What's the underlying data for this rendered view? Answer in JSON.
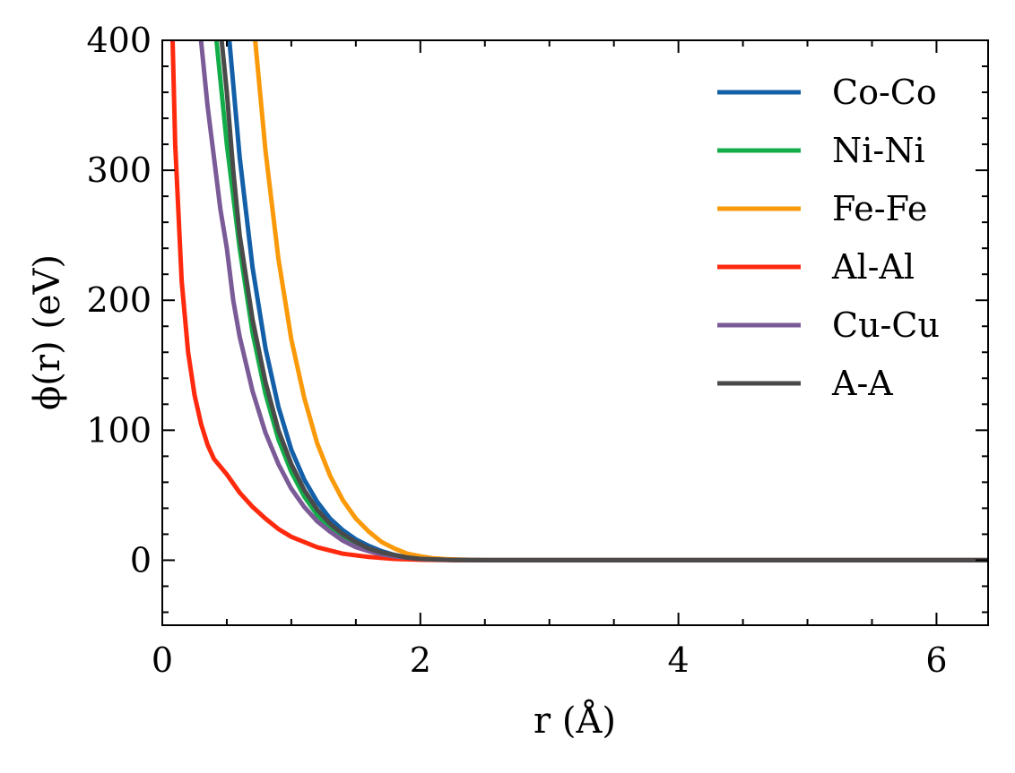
{
  "chart_data": {
    "type": "line",
    "xlabel": "r (Å)",
    "ylabel": "ϕ(r) (eV)",
    "xlim": [
      0,
      6.4
    ],
    "ylim": [
      -50,
      400
    ],
    "x_ticks": [
      0,
      2,
      4,
      6
    ],
    "x_tick_labels": [
      "0",
      "2",
      "4",
      "6"
    ],
    "y_ticks": [
      0,
      100,
      200,
      300,
      400
    ],
    "y_tick_labels": [
      "0",
      "100",
      "200",
      "300",
      "400"
    ],
    "legend_position": "upper-right",
    "grid": false,
    "series": [
      {
        "name": "Co-Co",
        "color": "#1460a8",
        "x": [
          0.52,
          0.6,
          0.7,
          0.8,
          0.9,
          1.0,
          1.1,
          1.2,
          1.3,
          1.4,
          1.5,
          1.6,
          1.7,
          1.8,
          1.9,
          2.0,
          2.2,
          2.5,
          3.0,
          4.0,
          5.0,
          6.4
        ],
        "y": [
          400,
          310,
          225,
          163,
          118,
          85,
          62,
          45,
          32,
          23,
          16,
          11,
          7,
          4,
          2,
          1,
          0.3,
          0,
          0,
          0,
          0,
          0
        ]
      },
      {
        "name": "Ni-Ni",
        "color": "#12ad48",
        "x": [
          0.42,
          0.5,
          0.6,
          0.7,
          0.8,
          0.9,
          1.0,
          1.1,
          1.2,
          1.3,
          1.4,
          1.5,
          1.6,
          1.7,
          1.8,
          1.9,
          2.0,
          2.2,
          2.5,
          3.0,
          4.0,
          5.0,
          6.4
        ],
        "y": [
          400,
          320,
          240,
          175,
          128,
          93,
          68,
          49,
          35,
          25,
          18,
          12,
          8,
          5,
          3,
          2,
          1,
          0.3,
          0,
          0,
          0,
          0,
          0
        ]
      },
      {
        "name": "Fe-Fe",
        "color": "#fa9a0a",
        "x": [
          0.72,
          0.8,
          0.9,
          1.0,
          1.1,
          1.2,
          1.3,
          1.4,
          1.5,
          1.6,
          1.7,
          1.8,
          1.9,
          2.0,
          2.1,
          2.2,
          2.5,
          3.0,
          4.0,
          5.0,
          6.4
        ],
        "y": [
          400,
          315,
          232,
          170,
          125,
          90,
          65,
          46,
          32,
          22,
          14,
          9,
          5,
          3,
          1.5,
          0.8,
          0,
          0,
          0,
          0,
          0
        ]
      },
      {
        "name": "Al-Al",
        "color": "#ff2a0e",
        "x": [
          0.08,
          0.1,
          0.15,
          0.2,
          0.25,
          0.3,
          0.35,
          0.4,
          0.5,
          0.6,
          0.7,
          0.8,
          0.9,
          1.0,
          1.2,
          1.4,
          1.6,
          1.8,
          2.0,
          2.2,
          2.5,
          3.0,
          4.0,
          5.0,
          6.4
        ],
        "y": [
          400,
          320,
          215,
          160,
          127,
          105,
          89,
          78,
          66,
          52,
          41,
          32,
          24,
          18,
          10,
          5,
          2.5,
          1,
          0.4,
          0.1,
          0,
          0,
          0,
          0,
          0
        ]
      },
      {
        "name": "Cu-Cu",
        "color": "#7b5b97",
        "x": [
          0.3,
          0.35,
          0.4,
          0.45,
          0.5,
          0.55,
          0.6,
          0.7,
          0.8,
          0.9,
          1.0,
          1.1,
          1.2,
          1.3,
          1.4,
          1.5,
          1.6,
          1.7,
          1.8,
          1.9,
          2.0,
          2.2,
          2.5,
          3.0,
          4.0,
          5.0,
          6.4
        ],
        "y": [
          400,
          350,
          310,
          270,
          240,
          200,
          172,
          130,
          98,
          74,
          55,
          41,
          30,
          22,
          15,
          10,
          7,
          4.5,
          3,
          2,
          1,
          0.3,
          0,
          0,
          0,
          0,
          0
        ]
      },
      {
        "name": "A-A",
        "color": "#4a4a4a",
        "x": [
          0.46,
          0.5,
          0.55,
          0.6,
          0.7,
          0.8,
          0.9,
          1.0,
          1.1,
          1.2,
          1.3,
          1.4,
          1.5,
          1.6,
          1.7,
          1.8,
          1.9,
          2.0,
          2.2,
          2.5,
          3.0,
          4.0,
          5.0,
          6.4
        ],
        "y": [
          400,
          360,
          300,
          250,
          185,
          137,
          100,
          74,
          54,
          39,
          28,
          20,
          14,
          9,
          6,
          4,
          2,
          1,
          0.3,
          0,
          0,
          0,
          0,
          0
        ]
      }
    ]
  }
}
